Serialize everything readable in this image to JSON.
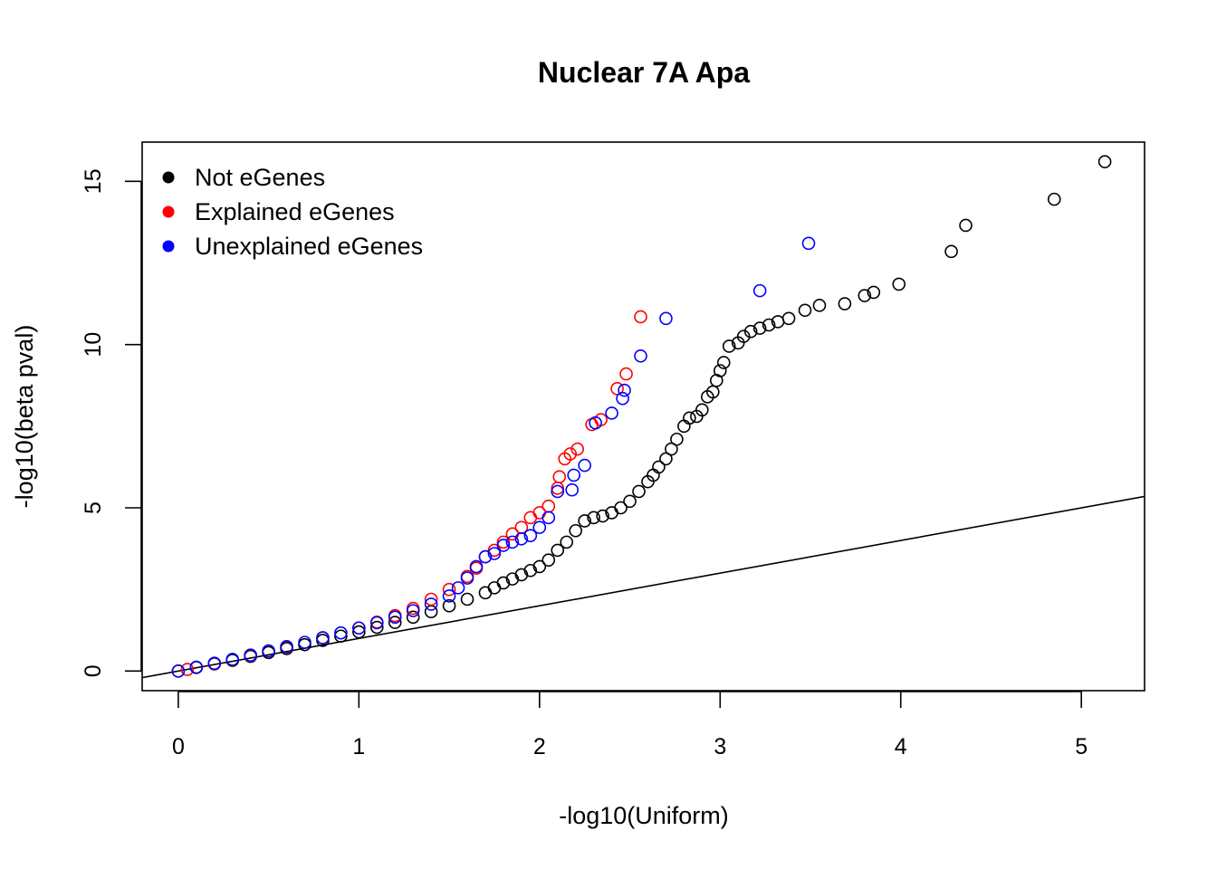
{
  "chart_data": {
    "type": "scatter",
    "title": "Nuclear 7A Apa",
    "xlabel": "-log10(Uniform)",
    "ylabel": "-log10(beta pval)",
    "xlim": [
      -0.2,
      5.35
    ],
    "ylim": [
      -0.6,
      16.2
    ],
    "xticks": [
      0,
      1,
      2,
      3,
      4,
      5
    ],
    "yticks": [
      0,
      5,
      10,
      15
    ],
    "xtick_labels": [
      "0",
      "1",
      "2",
      "3",
      "4",
      "5"
    ],
    "ytick_labels": [
      "0",
      "5",
      "10",
      "15"
    ],
    "legend": {
      "position": "top-left",
      "entries": [
        {
          "label": "Not eGenes",
          "color": "#000000"
        },
        {
          "label": "Explained eGenes",
          "color": "#ff0000"
        },
        {
          "label": "Unexplained eGenes",
          "color": "#0000ff"
        }
      ]
    },
    "reference_line": {
      "slope": 1,
      "intercept": 0,
      "color": "#000000"
    },
    "series": [
      {
        "name": "Not eGenes",
        "color": "#000000",
        "points": [
          [
            0.0,
            0.0
          ],
          [
            0.1,
            0.11
          ],
          [
            0.2,
            0.22
          ],
          [
            0.3,
            0.33
          ],
          [
            0.4,
            0.45
          ],
          [
            0.5,
            0.57
          ],
          [
            0.6,
            0.69
          ],
          [
            0.7,
            0.81
          ],
          [
            0.8,
            0.94
          ],
          [
            0.9,
            1.07
          ],
          [
            1.0,
            1.2
          ],
          [
            1.1,
            1.34
          ],
          [
            1.2,
            1.49
          ],
          [
            1.3,
            1.65
          ],
          [
            1.4,
            1.82
          ],
          [
            1.5,
            2.0
          ],
          [
            1.6,
            2.2
          ],
          [
            1.7,
            2.4
          ],
          [
            1.75,
            2.55
          ],
          [
            1.8,
            2.7
          ],
          [
            1.85,
            2.82
          ],
          [
            1.9,
            2.95
          ],
          [
            1.95,
            3.08
          ],
          [
            2.0,
            3.2
          ],
          [
            2.05,
            3.4
          ],
          [
            2.1,
            3.7
          ],
          [
            2.15,
            3.95
          ],
          [
            2.2,
            4.3
          ],
          [
            2.25,
            4.6
          ],
          [
            2.3,
            4.7
          ],
          [
            2.35,
            4.75
          ],
          [
            2.4,
            4.85
          ],
          [
            2.45,
            5.0
          ],
          [
            2.5,
            5.2
          ],
          [
            2.55,
            5.5
          ],
          [
            2.6,
            5.8
          ],
          [
            2.63,
            6.0
          ],
          [
            2.66,
            6.25
          ],
          [
            2.7,
            6.5
          ],
          [
            2.73,
            6.8
          ],
          [
            2.76,
            7.1
          ],
          [
            2.8,
            7.5
          ],
          [
            2.83,
            7.75
          ],
          [
            2.87,
            7.8
          ],
          [
            2.9,
            8.0
          ],
          [
            2.93,
            8.4
          ],
          [
            2.96,
            8.55
          ],
          [
            2.98,
            8.9
          ],
          [
            3.0,
            9.2
          ],
          [
            3.02,
            9.45
          ],
          [
            3.05,
            9.95
          ],
          [
            3.1,
            10.05
          ],
          [
            3.13,
            10.25
          ],
          [
            3.17,
            10.4
          ],
          [
            3.22,
            10.5
          ],
          [
            3.27,
            10.6
          ],
          [
            3.32,
            10.7
          ],
          [
            3.38,
            10.8
          ],
          [
            3.47,
            11.05
          ],
          [
            3.55,
            11.2
          ],
          [
            3.69,
            11.25
          ],
          [
            3.8,
            11.5
          ],
          [
            3.85,
            11.6
          ],
          [
            3.99,
            11.85
          ],
          [
            4.28,
            12.85
          ],
          [
            4.36,
            13.65
          ],
          [
            4.85,
            14.45
          ],
          [
            5.13,
            15.6
          ]
        ]
      },
      {
        "name": "Explained eGenes",
        "color": "#ff0000",
        "points": [
          [
            0.05,
            0.05
          ],
          [
            0.2,
            0.23
          ],
          [
            0.4,
            0.48
          ],
          [
            0.6,
            0.74
          ],
          [
            0.8,
            1.02
          ],
          [
            1.0,
            1.32
          ],
          [
            1.1,
            1.5
          ],
          [
            1.2,
            1.7
          ],
          [
            1.3,
            1.92
          ],
          [
            1.4,
            2.2
          ],
          [
            1.5,
            2.5
          ],
          [
            1.6,
            2.9
          ],
          [
            1.65,
            3.15
          ],
          [
            1.7,
            3.5
          ],
          [
            1.75,
            3.7
          ],
          [
            1.8,
            3.95
          ],
          [
            1.85,
            4.2
          ],
          [
            1.9,
            4.4
          ],
          [
            1.95,
            4.7
          ],
          [
            2.0,
            4.85
          ],
          [
            2.05,
            5.05
          ],
          [
            2.1,
            5.6
          ],
          [
            2.11,
            5.95
          ],
          [
            2.14,
            6.5
          ],
          [
            2.17,
            6.65
          ],
          [
            2.21,
            6.8
          ],
          [
            2.29,
            7.55
          ],
          [
            2.34,
            7.7
          ],
          [
            2.43,
            8.65
          ],
          [
            2.48,
            9.1
          ],
          [
            2.56,
            10.85
          ]
        ]
      },
      {
        "name": "Unexplained eGenes",
        "color": "#0000ff",
        "points": [
          [
            0.0,
            0.0
          ],
          [
            0.1,
            0.12
          ],
          [
            0.2,
            0.24
          ],
          [
            0.3,
            0.36
          ],
          [
            0.4,
            0.49
          ],
          [
            0.5,
            0.62
          ],
          [
            0.6,
            0.75
          ],
          [
            0.7,
            0.88
          ],
          [
            0.8,
            1.02
          ],
          [
            0.9,
            1.17
          ],
          [
            1.0,
            1.32
          ],
          [
            1.1,
            1.48
          ],
          [
            1.2,
            1.65
          ],
          [
            1.3,
            1.85
          ],
          [
            1.4,
            2.05
          ],
          [
            1.5,
            2.3
          ],
          [
            1.55,
            2.55
          ],
          [
            1.6,
            2.85
          ],
          [
            1.65,
            3.2
          ],
          [
            1.7,
            3.5
          ],
          [
            1.75,
            3.6
          ],
          [
            1.8,
            3.85
          ],
          [
            1.85,
            3.95
          ],
          [
            1.9,
            4.05
          ],
          [
            1.95,
            4.15
          ],
          [
            2.0,
            4.4
          ],
          [
            2.05,
            4.7
          ],
          [
            2.1,
            5.5
          ],
          [
            2.18,
            5.55
          ],
          [
            2.19,
            6.0
          ],
          [
            2.25,
            6.3
          ],
          [
            2.31,
            7.6
          ],
          [
            2.4,
            7.9
          ],
          [
            2.46,
            8.35
          ],
          [
            2.47,
            8.6
          ],
          [
            2.56,
            9.65
          ],
          [
            2.7,
            10.8
          ],
          [
            3.22,
            11.65
          ],
          [
            3.49,
            13.1
          ]
        ]
      }
    ]
  }
}
